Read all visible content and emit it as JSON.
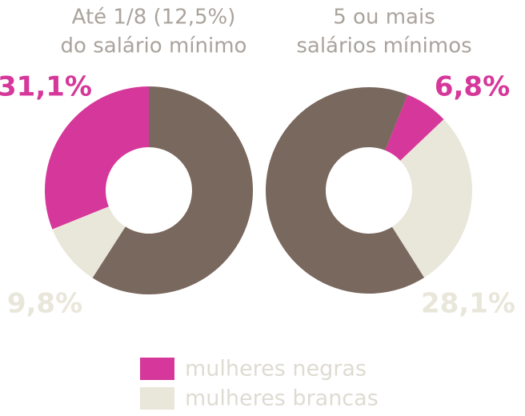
{
  "chart_data": [
    {
      "type": "pie",
      "title": [
        "Até 1/8 (12,5%)",
        "do salário mínimo"
      ],
      "categories": [
        "mulheres negras",
        "mulheres brancas",
        null
      ],
      "colors": [
        "#d6379a",
        "#e9e6da",
        "#79685d"
      ],
      "values": [
        31.1,
        9.8,
        59.1
      ],
      "value_labels": [
        "31,1%",
        "9,8%",
        null
      ]
    },
    {
      "type": "pie",
      "title": [
        "5 ou mais",
        "salários mínimos"
      ],
      "categories": [
        "mulheres negras",
        "mulheres brancas",
        null
      ],
      "colors": [
        "#d6379a",
        "#e9e6da",
        "#79685d"
      ],
      "values": [
        6.8,
        28.1,
        65.1
      ],
      "value_labels": [
        "6,8%",
        "28,1%",
        null
      ]
    }
  ]
}
